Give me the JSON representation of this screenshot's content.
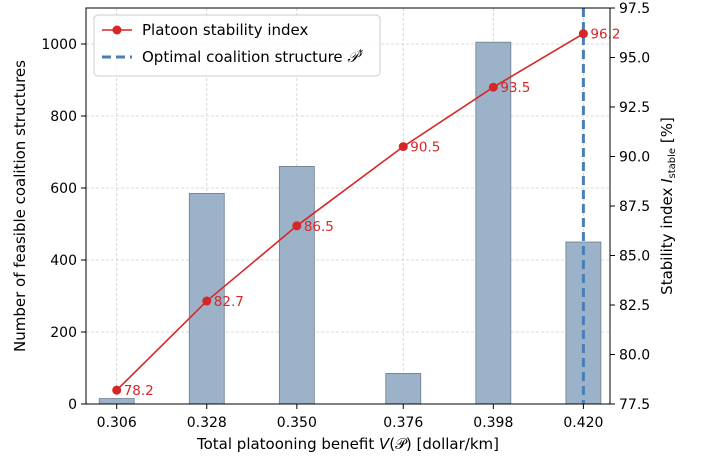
{
  "chart_data": {
    "type": "bar",
    "categories": [
      "0.306",
      "0.328",
      "0.350",
      "0.376",
      "0.398",
      "0.420"
    ],
    "x": [
      0.306,
      0.328,
      0.35,
      0.376,
      0.398,
      0.42
    ],
    "xlabel_prefix": "Total platooning benefit ",
    "xlabel_var": "V",
    "xlabel_arg": "(𝒫)",
    "xlabel_suffix": " [dollar/km]",
    "xlim": [
      0.2985,
      0.4265
    ],
    "ylabel_left": "Number of feasible coalition structures",
    "ylim_left": [
      0,
      1100
    ],
    "yticks_left": [
      0,
      200,
      400,
      600,
      800,
      1000
    ],
    "ylabel_right_prefix": "Stability index ",
    "ylabel_right_var": "I",
    "ylabel_right_sub": "stable",
    "ylabel_right_suffix": " [%]",
    "ylim_right": [
      77.5,
      97.5
    ],
    "yticks_right": [
      "77.5",
      "80.0",
      "82.5",
      "85.0",
      "87.5",
      "90.0",
      "92.5",
      "95.0",
      "97.5"
    ],
    "bars": {
      "values": [
        15,
        585,
        660,
        85,
        1005,
        450
      ],
      "color": "#9cb2c8",
      "edge": "#6d7d8c"
    },
    "line": {
      "name": "Platoon stability index",
      "values": [
        78.2,
        82.7,
        86.5,
        90.5,
        93.5,
        96.2
      ],
      "labels": [
        "78.2",
        "82.7",
        "86.5",
        "90.5",
        "93.5",
        "96.2"
      ],
      "color": "#d62728"
    },
    "optimal": {
      "name_prefix": "Optimal coalition structure ",
      "name_symbol": "𝒫",
      "name_sup": "*",
      "x": 0.42,
      "color": "#4a7fb5"
    },
    "grid": true,
    "legend_position": "top-left"
  }
}
